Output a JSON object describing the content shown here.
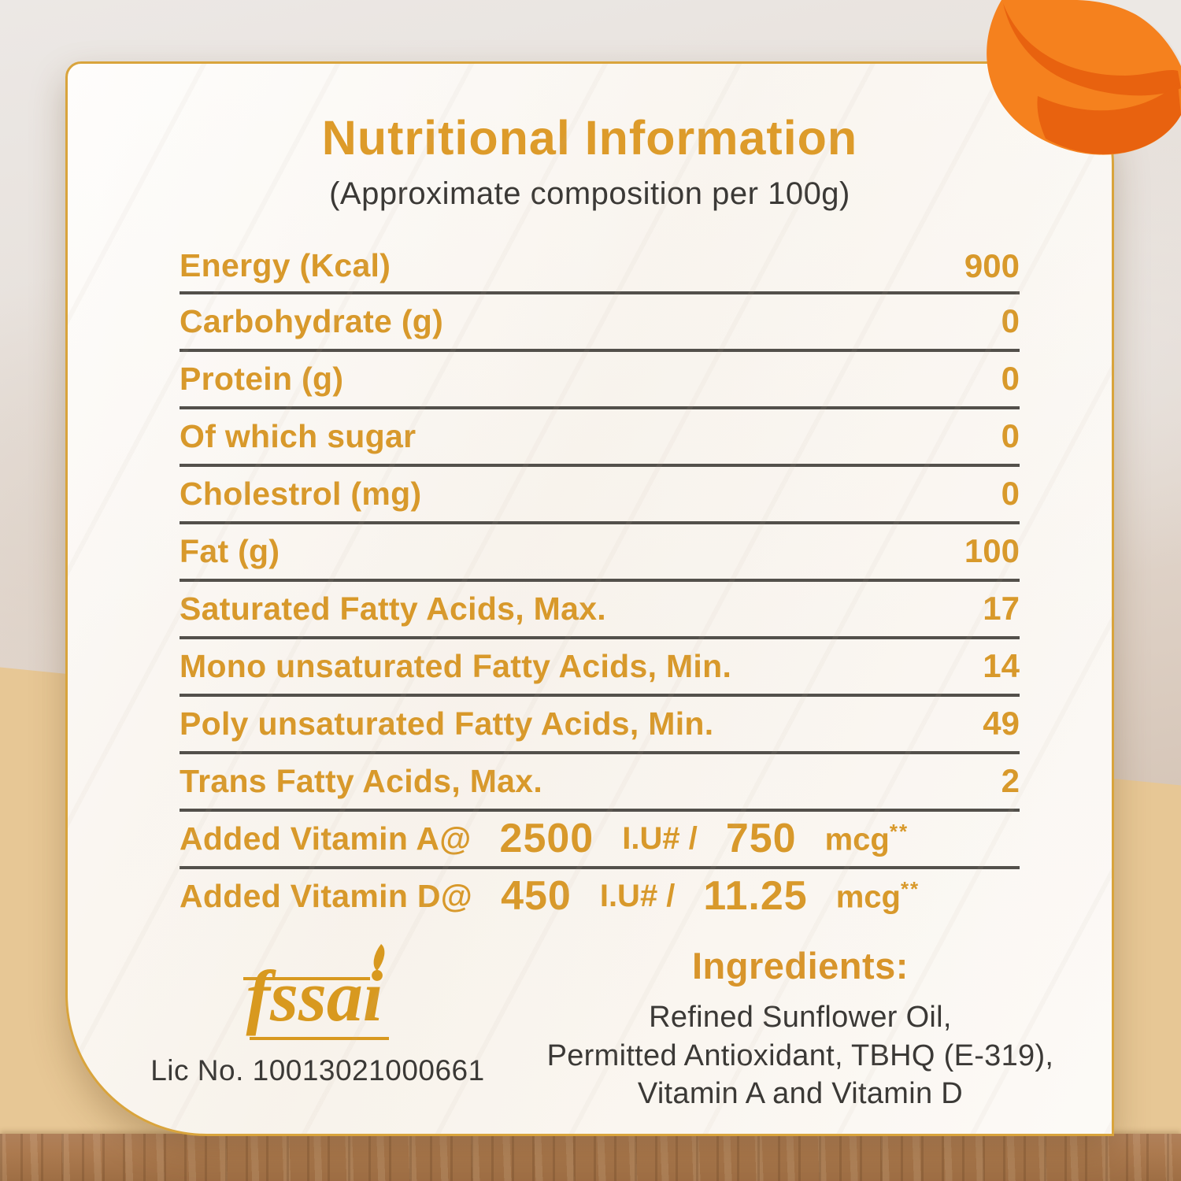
{
  "header": {
    "title": "Nutritional Information",
    "subtitle": "(Approximate composition per 100g)"
  },
  "table": {
    "rows": [
      {
        "label": "Energy (Kcal)",
        "value": "900"
      },
      {
        "label": "Carbohydrate (g)",
        "value": "0"
      },
      {
        "label": "Protein (g)",
        "value": "0"
      },
      {
        "label": "Of which sugar",
        "value": "0"
      },
      {
        "label": "Cholestrol (mg)",
        "value": "0"
      },
      {
        "label": "Fat (g)",
        "value": "100"
      },
      {
        "label": "Saturated Fatty Acids, Max.",
        "value": "17"
      },
      {
        "label": "Mono unsaturated Fatty Acids, Min.",
        "value": "14"
      },
      {
        "label": "Poly unsaturated Fatty Acids, Min.",
        "value": "49"
      },
      {
        "label": "Trans Fatty Acids, Max.",
        "value": "2"
      }
    ]
  },
  "vitamins": [
    {
      "label": "Added Vitamin A@",
      "iu_value": "2500",
      "iu_unit": "I.U# /",
      "mcg_value": "750",
      "mcg_unit": "mcg",
      "note_marks": "**"
    },
    {
      "label": "Added Vitamin D@",
      "iu_value": "450",
      "iu_unit": "I.U# /",
      "mcg_value": "11.25",
      "mcg_unit": "mcg",
      "note_marks": "**"
    }
  ],
  "certification": {
    "logo_text": "fssai",
    "license": "Lic No. 10013021000661"
  },
  "ingredients": {
    "heading": "Ingredients:",
    "lines": [
      "Refined Sunflower Oil,",
      "Permitted Antioxidant, TBHQ (E-319),",
      "Vitamin A and Vitamin D"
    ]
  },
  "colors": {
    "accent_orange_text": "#D8992B",
    "title_orange": "#DD9B2A",
    "separator_gray": "#53504B",
    "card_border_gold": "#D9A43C",
    "dark_text": "#3B3936",
    "swirl_orange": "#F5811E",
    "swirl_dark_orange": "#E8620F",
    "wood_light": "#E7C795",
    "wood_edge_brown": "#A5744A"
  }
}
